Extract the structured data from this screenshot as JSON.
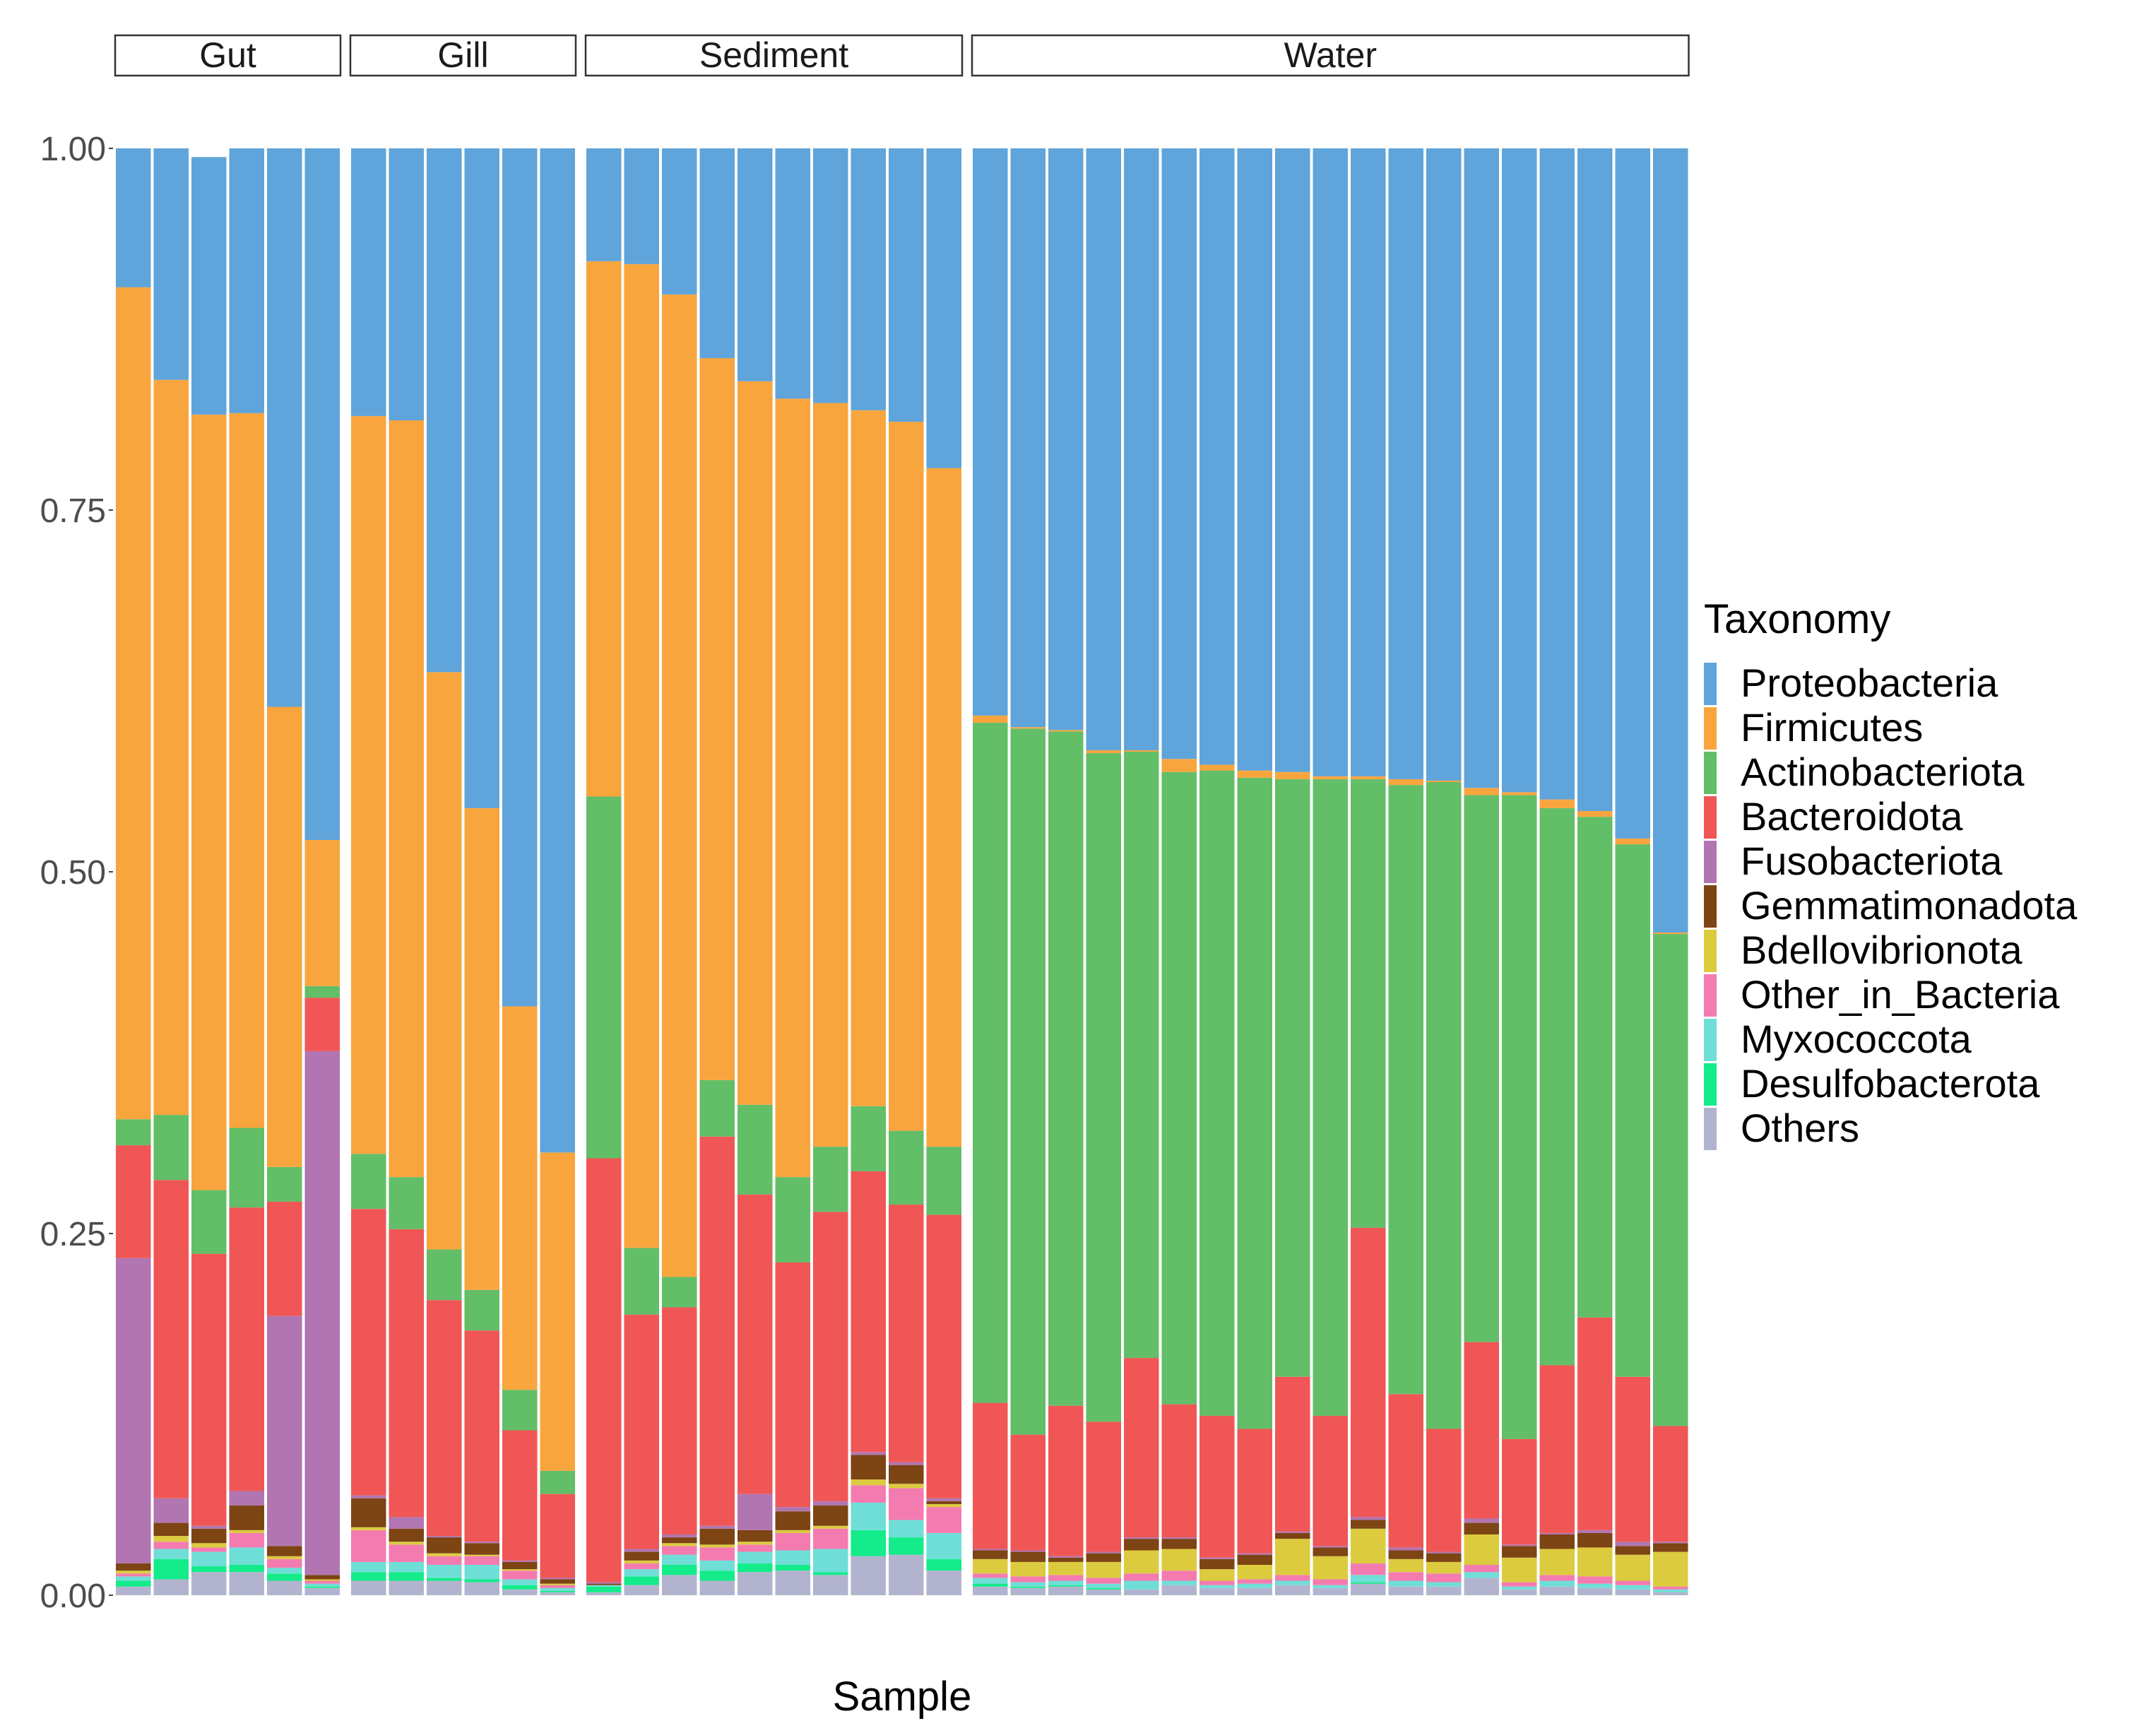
{
  "chart_data": {
    "type": "bar",
    "stacked": true,
    "xlabel": "Sample",
    "ylabel": "",
    "ylim": [
      0,
      1
    ],
    "y_ticks": [
      "0.00",
      "0.25",
      "0.50",
      "0.75",
      "1.00"
    ],
    "legend": {
      "title": "Taxonomy",
      "position": "right"
    },
    "series": [
      {
        "name": "Proteobacteria",
        "color": "#5FA4DA"
      },
      {
        "name": "Firmicutes",
        "color": "#F9A53E"
      },
      {
        "name": "Actinobacteriota",
        "color": "#62BE67"
      },
      {
        "name": "Bacteroidota",
        "color": "#F05656"
      },
      {
        "name": "Fusobacteriota",
        "color": "#B176B1"
      },
      {
        "name": "Gemmatimonadota",
        "color": "#7D4414"
      },
      {
        "name": "Bdellovibrionota",
        "color": "#DCCB3F"
      },
      {
        "name": "Other_in_Bacteria",
        "color": "#F47BB0"
      },
      {
        "name": "Myxococcota",
        "color": "#6FDED7"
      },
      {
        "name": "Desulfobacterota",
        "color": "#14EB8A"
      },
      {
        "name": "Others",
        "color": "#B2B4CF"
      }
    ],
    "panels": [
      {
        "label": "Gut",
        "samples": [
          [
            0.096,
            0.575,
            0.018,
            0.078,
            0.211,
            0.005,
            0.002,
            0.002,
            0.003,
            0.004,
            0.006
          ],
          [
            0.16,
            0.508,
            0.045,
            0.22,
            0.017,
            0.009,
            0.004,
            0.005,
            0.007,
            0.014,
            0.011
          ],
          [
            0.178,
            0.536,
            0.044,
            0.188,
            0.002,
            0.01,
            0.003,
            0.003,
            0.01,
            0.004,
            0.016
          ],
          [
            0.183,
            0.494,
            0.055,
            0.196,
            0.01,
            0.017,
            0.002,
            0.01,
            0.012,
            0.005,
            0.016
          ],
          [
            0.386,
            0.318,
            0.024,
            0.079,
            0.159,
            0.007,
            0.002,
            0.006,
            0.004,
            0.005,
            0.01
          ],
          [
            0.478,
            0.101,
            0.008,
            0.037,
            0.362,
            0.003,
            0.001,
            0.002,
            0.002,
            0.001,
            0.005
          ]
        ]
      },
      {
        "label": "Gill",
        "samples": [
          [
            0.185,
            0.51,
            0.038,
            0.198,
            0.002,
            0.02,
            0.002,
            0.022,
            0.007,
            0.006,
            0.01
          ],
          [
            0.188,
            0.523,
            0.036,
            0.199,
            0.008,
            0.009,
            0.002,
            0.012,
            0.007,
            0.006,
            0.01
          ],
          [
            0.362,
            0.399,
            0.035,
            0.163,
            0.001,
            0.011,
            0.002,
            0.006,
            0.009,
            0.002,
            0.01
          ],
          [
            0.456,
            0.333,
            0.028,
            0.146,
            0.001,
            0.008,
            0.001,
            0.006,
            0.01,
            0.002,
            0.009
          ],
          [
            0.593,
            0.265,
            0.028,
            0.09,
            0.001,
            0.005,
            0.001,
            0.006,
            0.004,
            0.003,
            0.004
          ],
          [
            0.694,
            0.22,
            0.016,
            0.058,
            0.001,
            0.003,
            0.001,
            0.002,
            0.002,
            0.001,
            0.002
          ]
        ]
      },
      {
        "label": "Sediment",
        "samples": [
          [
            0.078,
            0.37,
            0.25,
            0.293,
            0.001,
            0.001,
            0.0,
            0.0,
            0.001,
            0.004,
            0.002
          ],
          [
            0.08,
            0.68,
            0.046,
            0.162,
            0.002,
            0.006,
            0.002,
            0.004,
            0.005,
            0.006,
            0.007
          ],
          [
            0.101,
            0.679,
            0.021,
            0.157,
            0.002,
            0.004,
            0.002,
            0.006,
            0.007,
            0.007,
            0.014
          ],
          [
            0.145,
            0.499,
            0.039,
            0.269,
            0.002,
            0.011,
            0.002,
            0.009,
            0.007,
            0.007,
            0.01
          ],
          [
            0.161,
            0.5,
            0.062,
            0.207,
            0.025,
            0.008,
            0.002,
            0.005,
            0.008,
            0.006,
            0.016
          ],
          [
            0.173,
            0.538,
            0.059,
            0.169,
            0.003,
            0.013,
            0.002,
            0.012,
            0.01,
            0.004,
            0.017
          ],
          [
            0.176,
            0.514,
            0.045,
            0.2,
            0.003,
            0.014,
            0.002,
            0.014,
            0.016,
            0.002,
            0.014
          ],
          [
            0.181,
            0.481,
            0.045,
            0.194,
            0.002,
            0.017,
            0.004,
            0.012,
            0.019,
            0.018,
            0.027
          ],
          [
            0.189,
            0.49,
            0.051,
            0.178,
            0.002,
            0.013,
            0.003,
            0.022,
            0.012,
            0.012,
            0.028
          ],
          [
            0.221,
            0.469,
            0.047,
            0.196,
            0.002,
            0.002,
            0.002,
            0.018,
            0.018,
            0.008,
            0.017
          ]
        ]
      },
      {
        "label": "Water",
        "samples": [
          [
            0.392,
            0.005,
            0.47,
            0.101,
            0.001,
            0.006,
            0.01,
            0.003,
            0.004,
            0.002,
            0.006
          ],
          [
            0.4,
            0.001,
            0.488,
            0.08,
            0.001,
            0.007,
            0.01,
            0.004,
            0.003,
            0.001,
            0.005
          ],
          [
            0.402,
            0.001,
            0.466,
            0.104,
            0.001,
            0.003,
            0.009,
            0.004,
            0.003,
            0.001,
            0.006
          ],
          [
            0.416,
            0.002,
            0.462,
            0.09,
            0.001,
            0.006,
            0.011,
            0.004,
            0.003,
            0.001,
            0.004
          ],
          [
            0.416,
            0.001,
            0.419,
            0.124,
            0.001,
            0.008,
            0.016,
            0.005,
            0.006,
            0.0,
            0.004
          ],
          [
            0.422,
            0.009,
            0.437,
            0.092,
            0.001,
            0.007,
            0.015,
            0.007,
            0.003,
            0.0,
            0.007
          ],
          [
            0.426,
            0.004,
            0.446,
            0.098,
            0.001,
            0.007,
            0.008,
            0.003,
            0.002,
            0.0,
            0.005
          ],
          [
            0.43,
            0.005,
            0.45,
            0.086,
            0.001,
            0.007,
            0.01,
            0.003,
            0.003,
            0.0,
            0.005
          ],
          [
            0.431,
            0.005,
            0.413,
            0.107,
            0.001,
            0.004,
            0.025,
            0.004,
            0.003,
            0.0,
            0.007
          ],
          [
            0.434,
            0.002,
            0.44,
            0.09,
            0.001,
            0.006,
            0.016,
            0.004,
            0.002,
            0.0,
            0.005
          ],
          [
            0.434,
            0.002,
            0.31,
            0.2,
            0.002,
            0.006,
            0.024,
            0.008,
            0.005,
            0.001,
            0.008
          ],
          [
            0.436,
            0.004,
            0.421,
            0.106,
            0.002,
            0.006,
            0.009,
            0.006,
            0.004,
            0.0,
            0.006
          ],
          [
            0.437,
            0.001,
            0.447,
            0.085,
            0.001,
            0.006,
            0.008,
            0.006,
            0.003,
            0.0,
            0.006
          ],
          [
            0.442,
            0.005,
            0.378,
            0.122,
            0.003,
            0.008,
            0.021,
            0.005,
            0.004,
            0.0,
            0.012
          ],
          [
            0.445,
            0.002,
            0.445,
            0.073,
            0.001,
            0.008,
            0.017,
            0.003,
            0.002,
            0.0,
            0.004
          ],
          [
            0.45,
            0.006,
            0.385,
            0.116,
            0.001,
            0.01,
            0.018,
            0.004,
            0.004,
            0.0,
            0.006
          ],
          [
            0.458,
            0.004,
            0.346,
            0.147,
            0.002,
            0.01,
            0.02,
            0.005,
            0.003,
            0.0,
            0.005
          ],
          [
            0.477,
            0.004,
            0.368,
            0.114,
            0.003,
            0.006,
            0.018,
            0.003,
            0.003,
            0.0,
            0.004
          ],
          [
            0.542,
            0.001,
            0.34,
            0.08,
            0.001,
            0.006,
            0.024,
            0.002,
            0.002,
            0.0,
            0.002
          ]
        ]
      }
    ]
  }
}
